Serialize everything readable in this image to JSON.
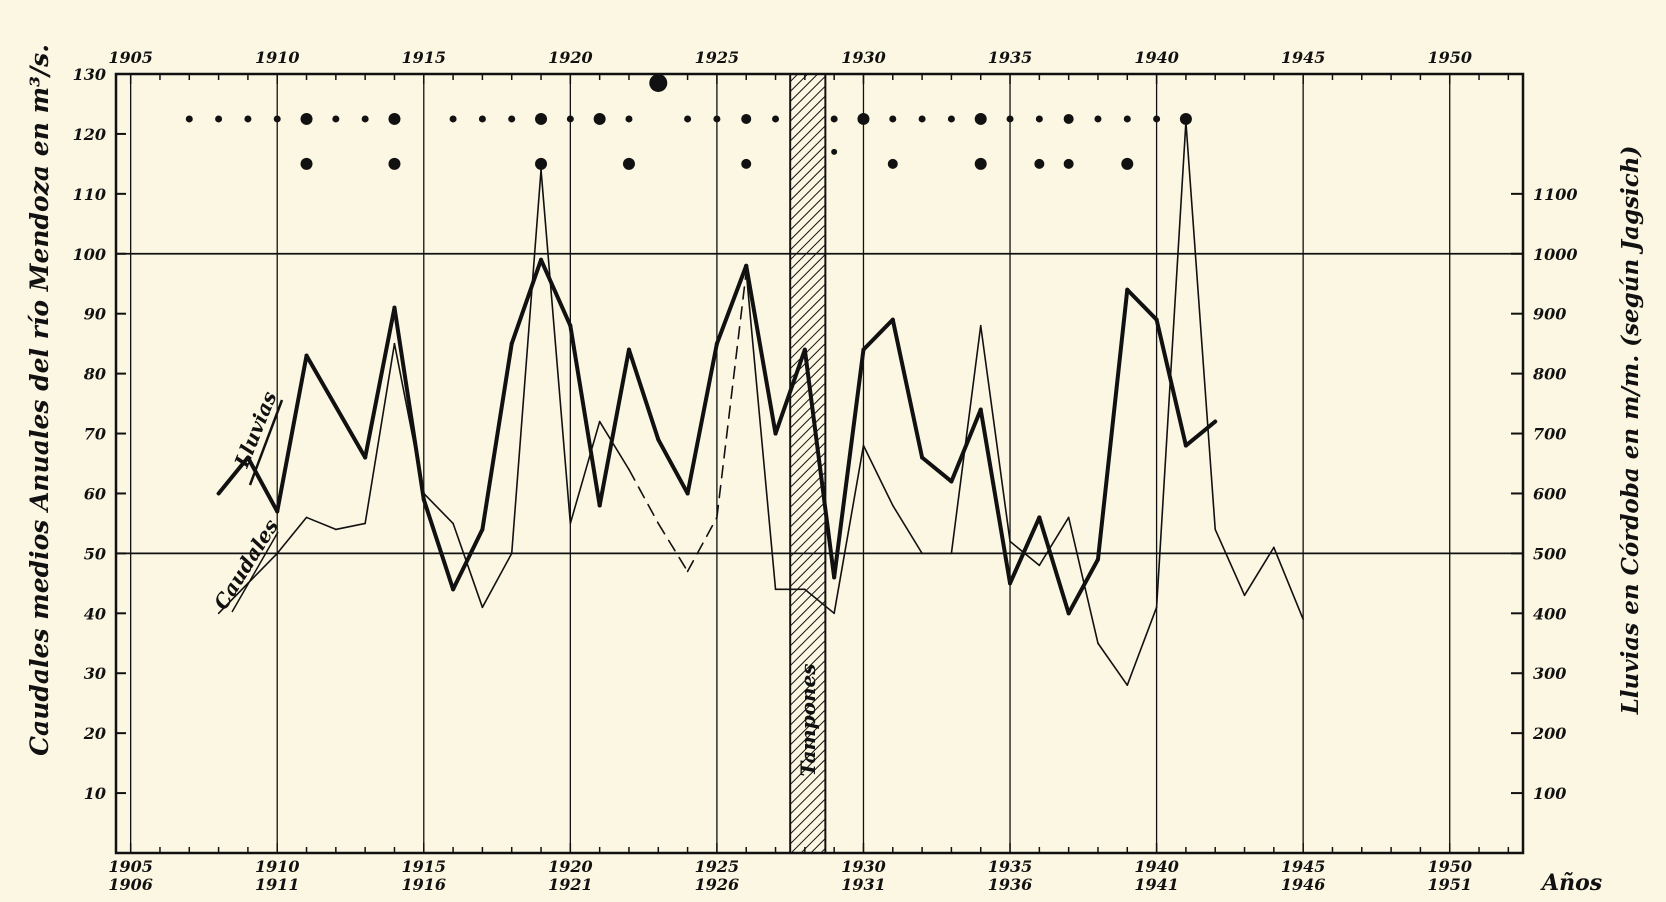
{
  "chart_data": {
    "type": "line",
    "ylabel": "Caudales medios Anuales del río Mendoza en m³/s.",
    "y2label": "Lluvias en Córdoba en m/m. (según Jagsich)",
    "xlabel": "Años",
    "top_ticks": [
      "1905",
      "1910",
      "1915",
      "1920",
      "1925",
      "1930",
      "1935",
      "1940",
      "1945",
      "1950"
    ],
    "bottom_ticks": [
      {
        "year": 1905,
        "l1": "1905",
        "l2": "1906"
      },
      {
        "year": 1910,
        "l1": "1910",
        "l2": "1911"
      },
      {
        "year": 1915,
        "l1": "1915",
        "l2": "1916"
      },
      {
        "year": 1920,
        "l1": "1920",
        "l2": "1921"
      },
      {
        "year": 1925,
        "l1": "1925",
        "l2": "1926"
      },
      {
        "year": 1930,
        "l1": "1930",
        "l2": "1931"
      },
      {
        "year": 1935,
        "l1": "1935",
        "l2": "1936"
      },
      {
        "year": 1940,
        "l1": "1940",
        "l2": "1941"
      },
      {
        "year": 1945,
        "l1": "1945",
        "l2": "1946"
      },
      {
        "year": 1950,
        "l1": "1950",
        "l2": "1951"
      }
    ],
    "y_ticks": [
      "10",
      "20",
      "30",
      "40",
      "50",
      "60",
      "70",
      "80",
      "90",
      "100",
      "110",
      "120",
      "130"
    ],
    "y2_ticks": [
      "100",
      "200",
      "300",
      "400",
      "500",
      "600",
      "700",
      "800",
      "900",
      "1000",
      "1100"
    ],
    "xlim": [
      1904.5,
      1952.5
    ],
    "ylim": [
      0,
      130
    ],
    "y2lim": [
      0,
      1300
    ],
    "reference_lines": [
      50,
      100
    ],
    "hatched_band": {
      "x0": 1927.5,
      "x1": 1928.7,
      "label": "Tampones"
    },
    "series": [
      {
        "name": "Lluvias",
        "style": "thick",
        "x": [
          1908,
          1909,
          1910,
          1911,
          1913,
          1914,
          1915,
          1916,
          1917,
          1918,
          1919,
          1920,
          1921,
          1922,
          1923,
          1924,
          1925,
          1926,
          1927,
          1928,
          1929,
          1930,
          1931,
          1932,
          1933,
          1934,
          1935,
          1936,
          1937,
          1938,
          1939,
          1940,
          1941,
          1942
        ],
        "y": [
          60,
          66,
          57,
          83,
          66,
          91,
          59,
          44,
          54,
          85,
          99,
          88,
          58,
          84,
          69,
          60,
          85,
          98,
          70,
          84,
          46,
          84,
          89,
          66,
          62,
          74,
          45,
          56,
          40,
          49,
          94,
          89,
          68,
          72
        ]
      },
      {
        "name": "Caudales",
        "style": "thin",
        "x": [
          1908,
          1909,
          1910,
          1911,
          1912,
          1913,
          1914,
          1915,
          1916,
          1917,
          1918,
          1919,
          1920,
          1921,
          1922,
          1923,
          1924,
          1925,
          1926,
          1927,
          1928,
          1929,
          1930,
          1931,
          1932,
          1933,
          1934,
          1935,
          1936,
          1937,
          1938,
          1939,
          1940,
          1941,
          1942,
          1943,
          1944,
          1945
        ],
        "y": [
          40,
          45,
          50,
          56,
          54,
          55,
          85,
          60,
          55,
          41,
          50,
          114,
          55,
          72,
          64,
          55,
          47,
          56,
          97,
          44,
          44,
          40,
          68,
          58,
          50,
          50,
          88,
          52,
          48,
          56,
          35,
          28,
          41,
          122,
          54,
          43,
          51,
          39
        ],
        "dashed_x": [
          1922,
          1926
        ]
      }
    ],
    "series_labels": [
      "Lluvias",
      "Caudales"
    ],
    "top_dots": [
      {
        "x": 1907,
        "y": 122.5,
        "r": 3.5
      },
      {
        "x": 1908,
        "y": 122.5,
        "r": 3.5
      },
      {
        "x": 1909,
        "y": 122.5,
        "r": 3.5
      },
      {
        "x": 1910,
        "y": 122.5,
        "r": 3.5
      },
      {
        "x": 1911,
        "y": 122.5,
        "r": 6
      },
      {
        "x": 1912,
        "y": 122.5,
        "r": 3.5
      },
      {
        "x": 1913,
        "y": 122.5,
        "r": 3.5
      },
      {
        "x": 1914,
        "y": 122.5,
        "r": 6
      },
      {
        "x": 1916,
        "y": 122.5,
        "r": 3.5
      },
      {
        "x": 1917,
        "y": 122.5,
        "r": 3.5
      },
      {
        "x": 1918,
        "y": 122.5,
        "r": 3.5
      },
      {
        "x": 1919,
        "y": 122.5,
        "r": 6
      },
      {
        "x": 1920,
        "y": 122.5,
        "r": 3.5
      },
      {
        "x": 1921,
        "y": 122.5,
        "r": 6
      },
      {
        "x": 1922,
        "y": 122.5,
        "r": 3.5
      },
      {
        "x": 1923,
        "y": 128.5,
        "r": 9
      },
      {
        "x": 1924,
        "y": 122.5,
        "r": 3.5
      },
      {
        "x": 1925,
        "y": 122.5,
        "r": 3.5
      },
      {
        "x": 1926,
        "y": 122.5,
        "r": 5
      },
      {
        "x": 1927,
        "y": 122.5,
        "r": 3.5
      },
      {
        "x": 1929,
        "y": 122.5,
        "r": 3.5
      },
      {
        "x": 1930,
        "y": 122.5,
        "r": 6
      },
      {
        "x": 1931,
        "y": 122.5,
        "r": 3.5
      },
      {
        "x": 1932,
        "y": 122.5,
        "r": 3.5
      },
      {
        "x": 1933,
        "y": 122.5,
        "r": 3.5
      },
      {
        "x": 1934,
        "y": 122.5,
        "r": 6
      },
      {
        "x": 1935,
        "y": 122.5,
        "r": 3.5
      },
      {
        "x": 1936,
        "y": 122.5,
        "r": 3.5
      },
      {
        "x": 1937,
        "y": 122.5,
        "r": 5
      },
      {
        "x": 1938,
        "y": 122.5,
        "r": 3.5
      },
      {
        "x": 1939,
        "y": 122.5,
        "r": 3.5
      },
      {
        "x": 1940,
        "y": 122.5,
        "r": 3.5
      },
      {
        "x": 1941,
        "y": 122.5,
        "r": 6
      },
      {
        "x": 1911,
        "y": 115,
        "r": 6
      },
      {
        "x": 1914,
        "y": 115,
        "r": 6
      },
      {
        "x": 1919,
        "y": 115,
        "r": 6
      },
      {
        "x": 1922,
        "y": 115,
        "r": 6
      },
      {
        "x": 1926,
        "y": 115,
        "r": 5
      },
      {
        "x": 1929,
        "y": 117,
        "r": 3
      },
      {
        "x": 1931,
        "y": 115,
        "r": 5
      },
      {
        "x": 1934,
        "y": 115,
        "r": 6
      },
      {
        "x": 1936,
        "y": 115,
        "r": 5
      },
      {
        "x": 1937,
        "y": 115,
        "r": 5
      },
      {
        "x": 1939,
        "y": 115,
        "r": 6
      }
    ]
  }
}
